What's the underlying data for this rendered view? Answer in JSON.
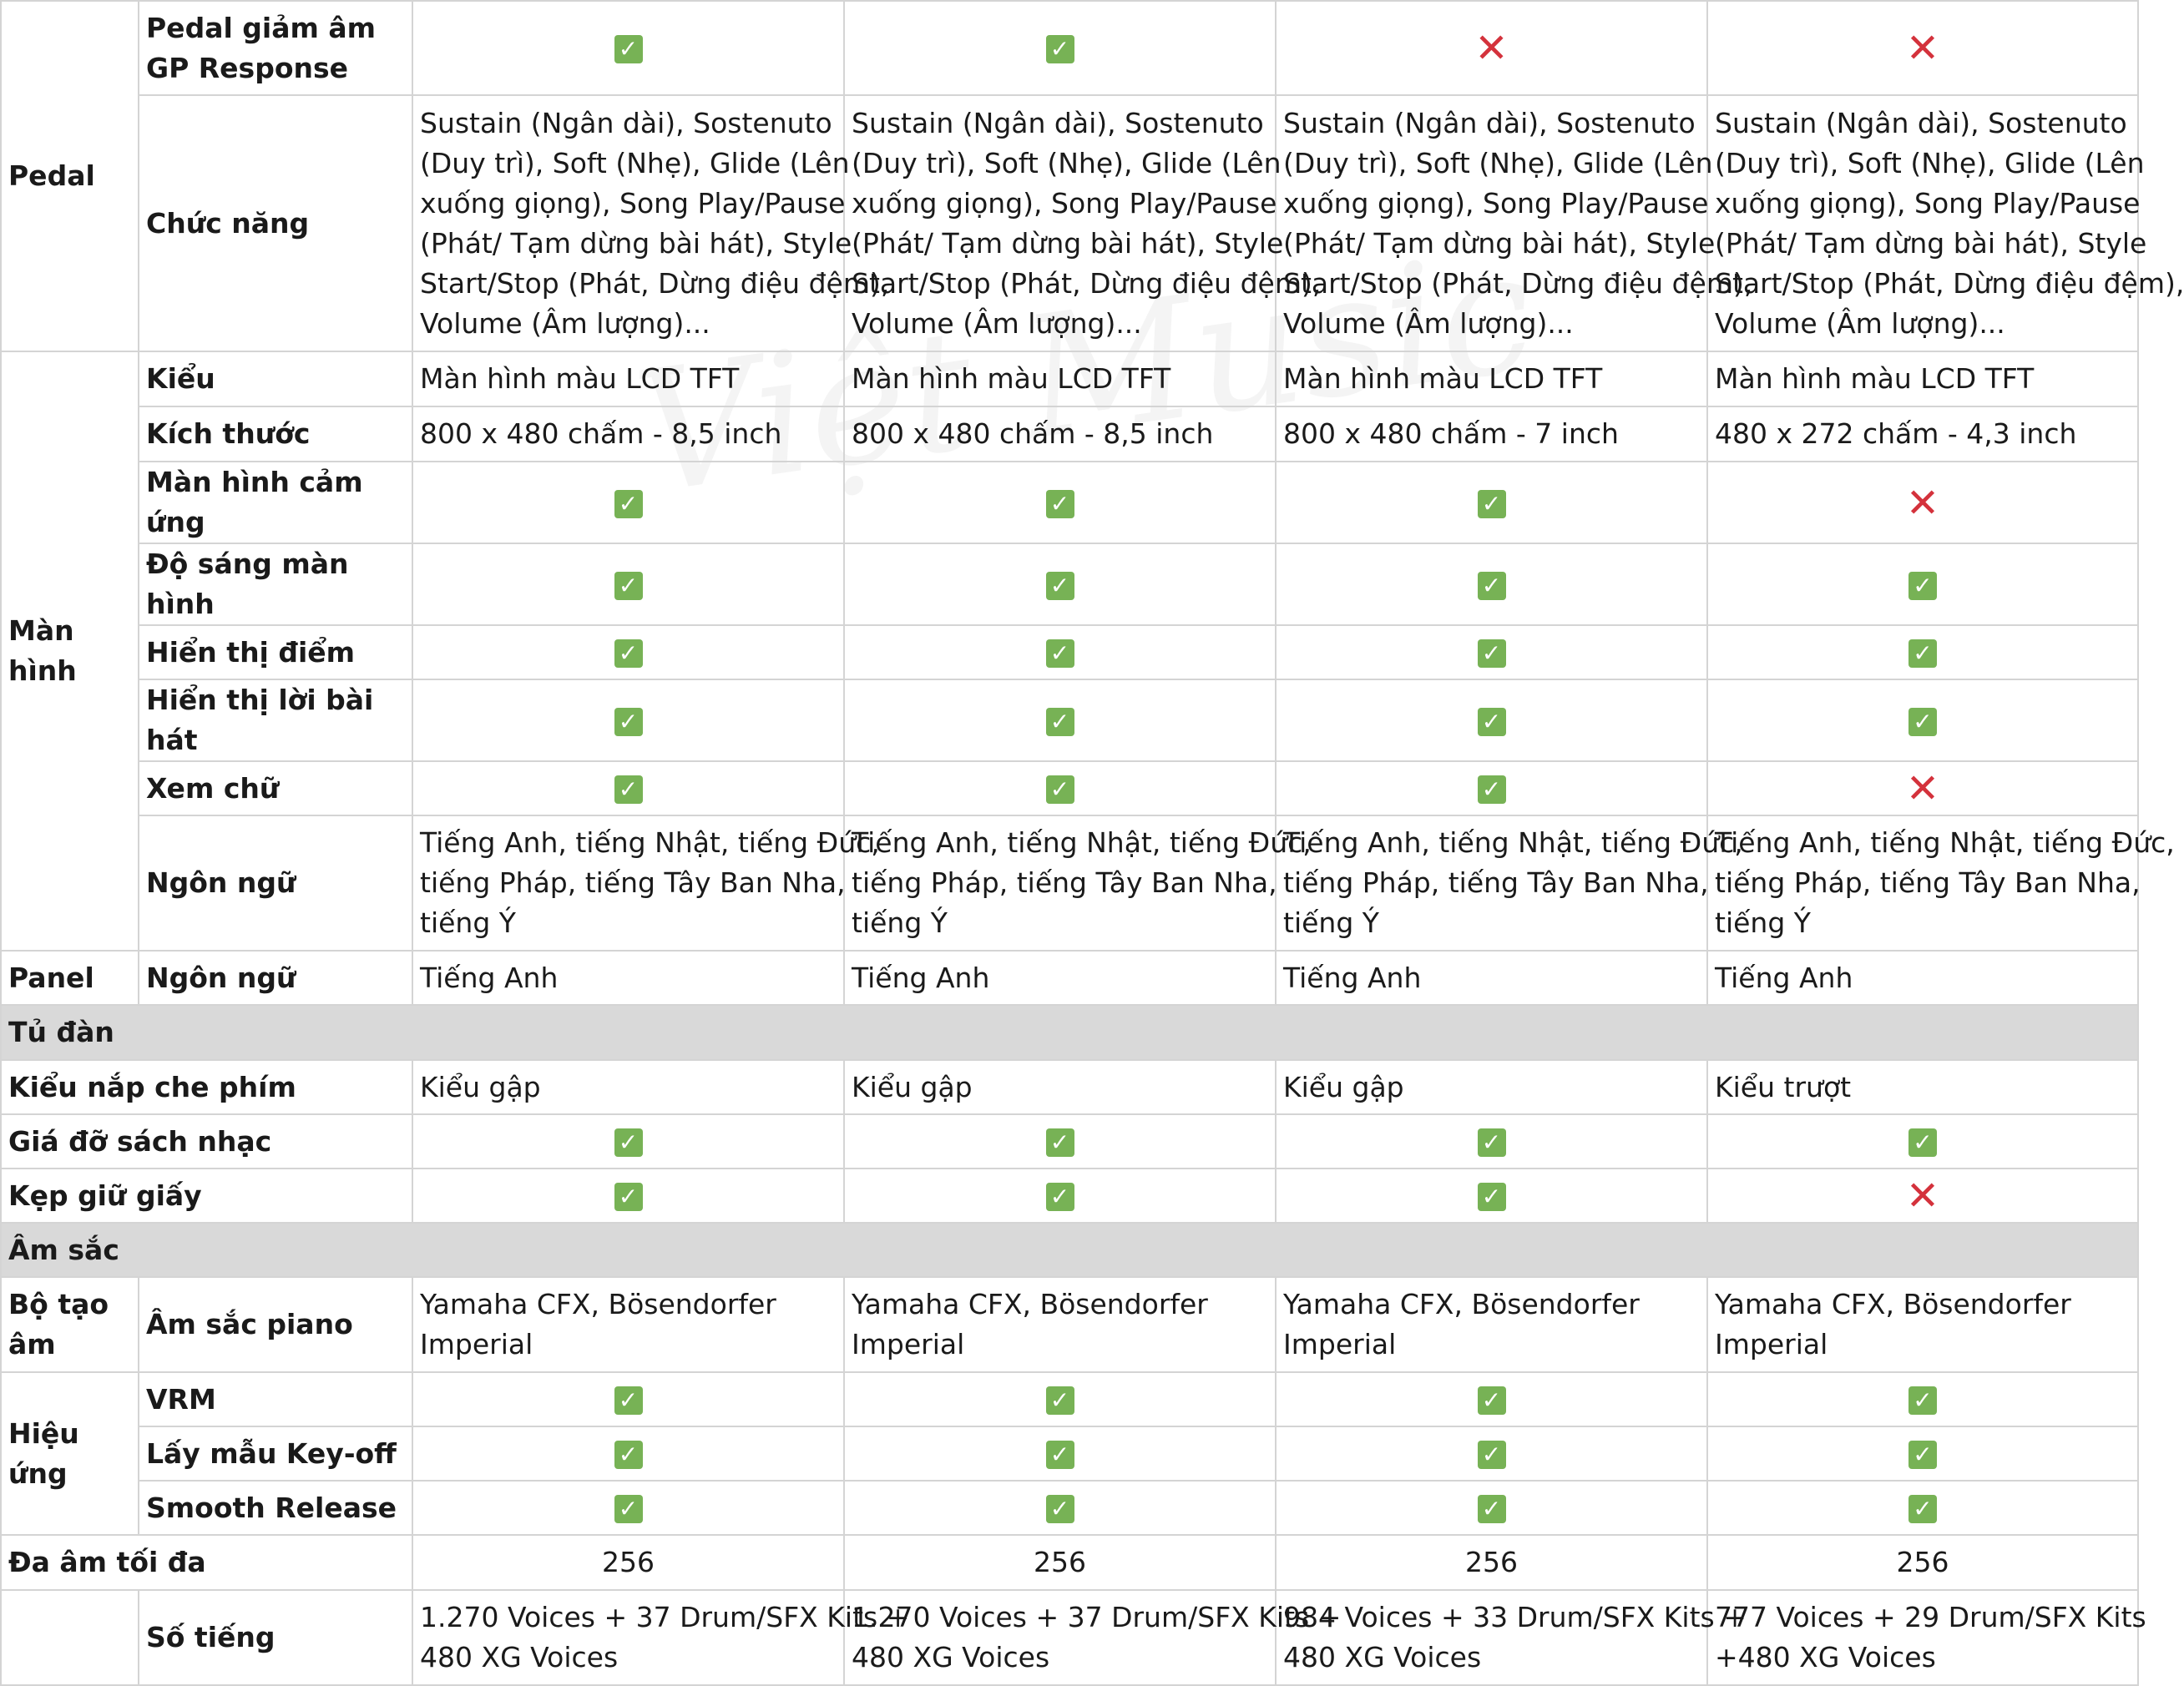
{
  "icons": {
    "yes": "check-mark-icon",
    "no": "cross-mark-icon"
  },
  "colors": {
    "check": "#77b255",
    "cross": "#d4323c",
    "section_bg": "#d9d9d9",
    "grid": "#d4d4d4"
  },
  "watermark": "Việt Music",
  "yes_glyph": "✓",
  "no_glyph": "✕",
  "rows": {
    "pedal_gp": {
      "category": "Pedal",
      "label": "Pedal giảm âm GP Response",
      "marks": [
        "yes",
        "yes",
        "no",
        "no"
      ]
    },
    "pedal_func": {
      "label": "Chức năng",
      "lines": [
        "Sustain (Ngân dài), Sostenuto",
        "(Duy trì), Soft (Nhẹ), Glide (Lên",
        "xuống giọng), Song Play/Pause",
        "(Phát/ Tạm dừng bài hát), Style",
        "Start/Stop (Phát, Dừng điệu đệm),",
        "Volume (Âm lượng)..."
      ]
    },
    "screen_type": {
      "category": "Màn hình",
      "label": "Kiểu",
      "values": [
        "Màn hình màu LCD TFT",
        "Màn hình màu LCD TFT",
        "Màn hình màu LCD TFT",
        "Màn hình màu LCD TFT"
      ]
    },
    "screen_size": {
      "label": "Kích thước",
      "values": [
        "800 x 480 chấm - 8,5 inch",
        "800 x 480 chấm - 8,5 inch",
        "800 x 480 chấm - 7 inch",
        "480 x 272 chấm - 4,3 inch"
      ]
    },
    "touch": {
      "label": "Màn hình cảm ứng",
      "marks": [
        "yes",
        "yes",
        "yes",
        "no"
      ]
    },
    "brightness": {
      "label": "Độ sáng màn hình",
      "marks": [
        "yes",
        "yes",
        "yes",
        "yes"
      ]
    },
    "score": {
      "label": "Hiển thị điểm",
      "marks": [
        "yes",
        "yes",
        "yes",
        "yes"
      ]
    },
    "lyrics": {
      "label": "Hiển thị lời bài hát",
      "marks": [
        "yes",
        "yes",
        "yes",
        "yes"
      ]
    },
    "text_view": {
      "label": "Xem chữ",
      "marks": [
        "yes",
        "yes",
        "yes",
        "no"
      ]
    },
    "screen_lang": {
      "label": "Ngôn ngữ",
      "lines": [
        "Tiếng Anh, tiếng Nhật, tiếng Đức,",
        "tiếng Pháp, tiếng Tây Ban Nha,",
        "tiếng Ý"
      ]
    },
    "panel_lang": {
      "category": "Panel",
      "label": "Ngôn ngữ",
      "values": [
        "Tiếng Anh",
        "Tiếng Anh",
        "Tiếng Anh",
        "Tiếng Anh"
      ]
    },
    "section_cabinet": "Tủ đàn",
    "key_cover": {
      "label": "Kiểu nắp che phím",
      "values": [
        "Kiểu gập",
        "Kiểu gập",
        "Kiểu gập",
        "Kiểu trượt"
      ]
    },
    "music_rest": {
      "label": "Giá đỡ sách nhạc",
      "marks": [
        "yes",
        "yes",
        "yes",
        "yes"
      ]
    },
    "page_clips": {
      "label": "Kẹp giữ giấy",
      "marks": [
        "yes",
        "yes",
        "yes",
        "no"
      ]
    },
    "section_tone": "Âm sắc",
    "piano_sound": {
      "category": "Bộ tạo âm",
      "label": "Âm sắc piano",
      "lines": [
        "Yamaha CFX, Bösendorfer",
        "Imperial"
      ]
    },
    "vrm": {
      "category": "Hiệu ứng",
      "label": "VRM",
      "marks": [
        "yes",
        "yes",
        "yes",
        "yes"
      ]
    },
    "keyoff": {
      "label": "Lấy mẫu Key-off",
      "marks": [
        "yes",
        "yes",
        "yes",
        "yes"
      ]
    },
    "smooth": {
      "label": "Smooth Release",
      "marks": [
        "yes",
        "yes",
        "yes",
        "yes"
      ]
    },
    "polyphony": {
      "label": "Đa âm tối đa",
      "values": [
        "256",
        "256",
        "256",
        "256"
      ]
    },
    "voices": {
      "label": "Số tiếng",
      "cells": [
        [
          "1.270 Voices + 37 Drum/SFX Kits +",
          "480 XG Voices"
        ],
        [
          "1.270 Voices + 37 Drum/SFX Kits +",
          "480 XG Voices"
        ],
        [
          "984 Voices + 33 Drum/SFX Kits +",
          "480 XG Voices"
        ],
        [
          "777 Voices + 29 Drum/SFX Kits",
          "+480 XG Voices"
        ]
      ]
    }
  }
}
